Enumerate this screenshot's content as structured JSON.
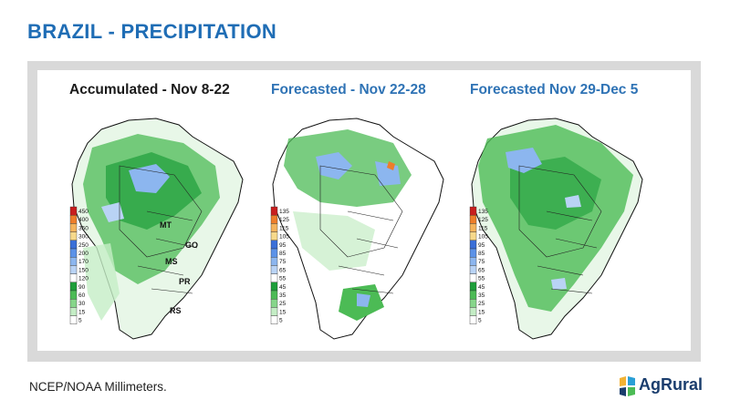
{
  "header": {
    "title": "BRAZIL - PRECIPITATION"
  },
  "maps": [
    {
      "title": "Accumulated - Nov 8-22",
      "legend": [
        "450",
        "400",
        "350",
        "300",
        "250",
        "200",
        "170",
        "150",
        "120",
        "90",
        "60",
        "30",
        "15",
        "5"
      ],
      "legend_colors": [
        "#c81e1e",
        "#ee7d2a",
        "#f5b35c",
        "#f7d98b",
        "#3a6fd8",
        "#5b92e8",
        "#8cb6ef",
        "#b9d3f5",
        "#ffffff",
        "#1e9e3a",
        "#4cbb55",
        "#86d68a",
        "#c4edc5",
        "#ffffff"
      ],
      "state_labels": [
        "MT",
        "GO",
        "MS",
        "PR",
        "RS"
      ]
    },
    {
      "title": "Forecasted - Nov 22-28",
      "legend": [
        "135",
        "125",
        "115",
        "105",
        "95",
        "85",
        "75",
        "65",
        "55",
        "45",
        "35",
        "25",
        "15",
        "5"
      ],
      "legend_colors": [
        "#c81e1e",
        "#ee7d2a",
        "#f5b35c",
        "#f7d98b",
        "#3a6fd8",
        "#5b92e8",
        "#8cb6ef",
        "#b9d3f5",
        "#ffffff",
        "#1e9e3a",
        "#4cbb55",
        "#86d68a",
        "#c4edc5",
        "#ffffff"
      ]
    },
    {
      "title": "Forecasted Nov 29-Dec 5",
      "legend": [
        "135",
        "125",
        "115",
        "105",
        "95",
        "85",
        "75",
        "65",
        "55",
        "45",
        "35",
        "25",
        "15",
        "5"
      ],
      "legend_colors": [
        "#c81e1e",
        "#ee7d2a",
        "#f5b35c",
        "#f7d98b",
        "#3a6fd8",
        "#5b92e8",
        "#8cb6ef",
        "#b9d3f5",
        "#ffffff",
        "#1e9e3a",
        "#4cbb55",
        "#86d68a",
        "#c4edc5",
        "#ffffff"
      ]
    }
  ],
  "footer": {
    "source": "NCEP/NOAA  Millimeters."
  },
  "logo": {
    "text": "AgRural"
  }
}
